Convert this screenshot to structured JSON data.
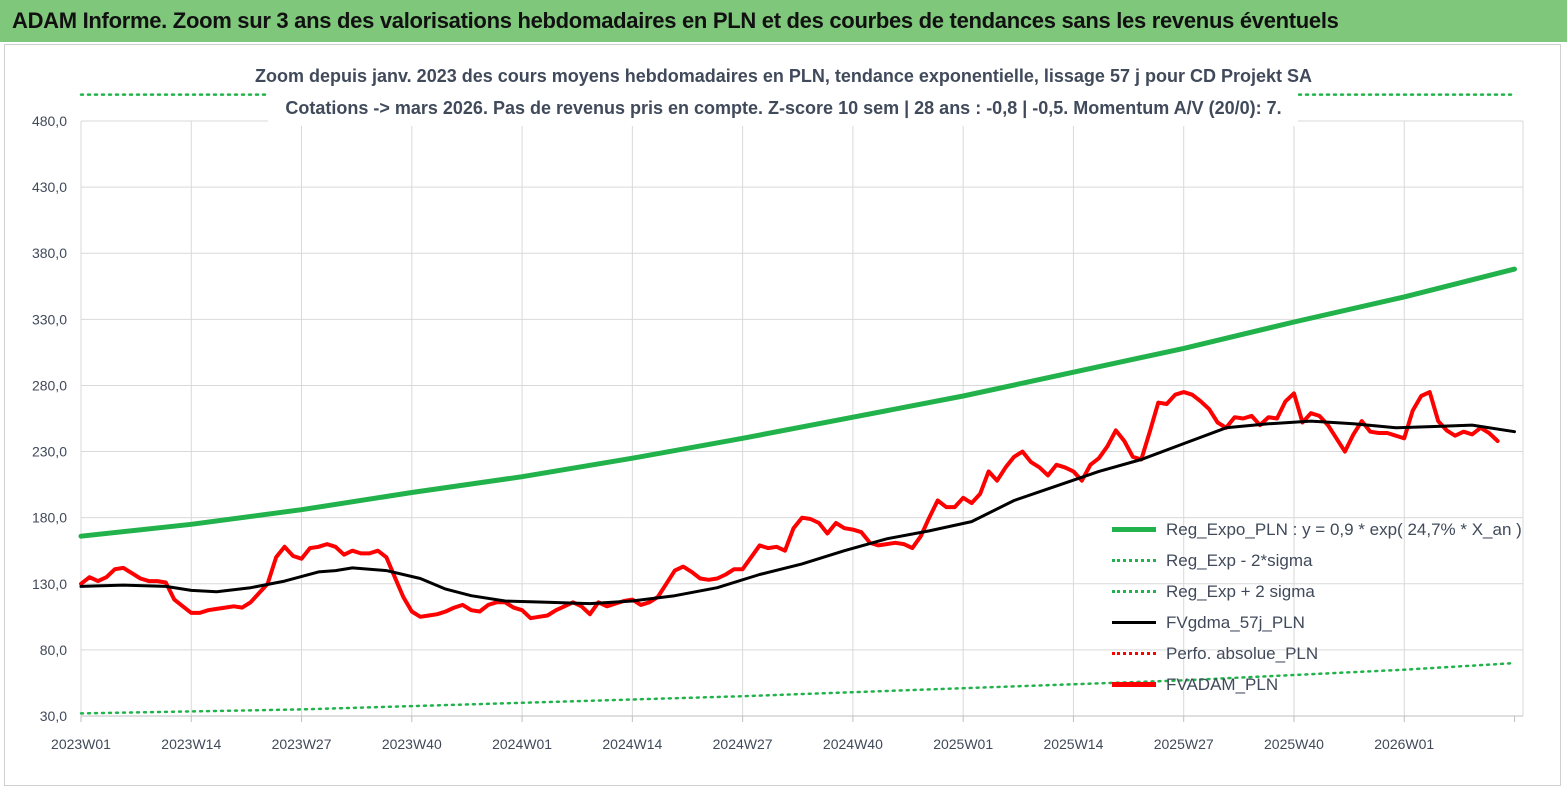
{
  "header": {
    "title": "ADAM Informe. Zoom sur 3 ans des valorisations hebdomadaires en PLN et des courbes de tendances sans les revenus éventuels"
  },
  "chart_data": {
    "type": "line",
    "title_line1": "Zoom depuis janv. 2023 des cours moyens hebdomadaires en PLN, tendance exponentielle, lissage 57 j pour CD Projekt SA",
    "title_line2": "Cotations -> mars 2026. Pas de revenus pris en  compte. Z-score 10 sem  | 28 ans : -0,8 | -0,5. Momentum A/V (20/0): 7.",
    "ylim": [
      30,
      480
    ],
    "ytick_labels": [
      "30,0",
      "80,0",
      "130,0",
      "180,0",
      "230,0",
      "280,0",
      "330,0",
      "380,0",
      "430,0",
      "480,0"
    ],
    "ytick_values": [
      30,
      80,
      130,
      180,
      230,
      280,
      330,
      380,
      430,
      480
    ],
    "xtick_labels": [
      "2023W01",
      "2023W14",
      "2023W27",
      "2023W40",
      "2024W01",
      "2024W14",
      "2024W27",
      "2024W40",
      "2025W01",
      "2025W14",
      "2025W27",
      "2025W40",
      "2026W01"
    ],
    "x_weeks_total": 170,
    "grid": true,
    "legend_position": "bottom-right",
    "series": [
      {
        "name": "Reg_Expo_PLN : y = 0,9 * exp( 24,7% *  X_an )",
        "color": "#21b24b",
        "style": "solid",
        "width": 5,
        "points": [
          [
            0,
            166
          ],
          [
            13,
            175
          ],
          [
            26,
            186
          ],
          [
            39,
            199
          ],
          [
            52,
            211
          ],
          [
            65,
            225
          ],
          [
            78,
            240
          ],
          [
            91,
            256
          ],
          [
            104,
            272
          ],
          [
            117,
            290
          ],
          [
            130,
            308
          ],
          [
            143,
            328
          ],
          [
            156,
            347
          ],
          [
            169,
            368
          ]
        ]
      },
      {
        "name": "Reg_Exp - 2*sigma",
        "color": "#21b24b",
        "style": "dotted",
        "width": 2.5,
        "points": [
          [
            0,
            32
          ],
          [
            26,
            35
          ],
          [
            52,
            40
          ],
          [
            78,
            45
          ],
          [
            104,
            51
          ],
          [
            130,
            57
          ],
          [
            156,
            65
          ],
          [
            169,
            70
          ]
        ]
      },
      {
        "name": "Reg_Exp + 2 sigma",
        "color": "#21b24b",
        "style": "dotted",
        "width": 2.5,
        "points": [
          [
            0,
            500
          ],
          [
            169,
            500
          ]
        ]
      },
      {
        "name": "FVgdma_57j_PLN",
        "color": "#000000",
        "style": "solid",
        "width": 3,
        "points": [
          [
            0,
            128
          ],
          [
            5,
            129
          ],
          [
            10,
            128
          ],
          [
            13,
            125
          ],
          [
            16,
            124
          ],
          [
            20,
            127
          ],
          [
            24,
            132
          ],
          [
            28,
            139
          ],
          [
            30,
            140
          ],
          [
            32,
            142
          ],
          [
            36,
            140
          ],
          [
            40,
            134
          ],
          [
            43,
            126
          ],
          [
            46,
            121
          ],
          [
            50,
            117
          ],
          [
            55,
            116
          ],
          [
            60,
            115
          ],
          [
            65,
            117
          ],
          [
            70,
            121
          ],
          [
            75,
            127
          ],
          [
            80,
            137
          ],
          [
            85,
            145
          ],
          [
            90,
            155
          ],
          [
            95,
            164
          ],
          [
            100,
            170
          ],
          [
            105,
            177
          ],
          [
            110,
            193
          ],
          [
            115,
            204
          ],
          [
            120,
            215
          ],
          [
            125,
            224
          ],
          [
            130,
            236
          ],
          [
            135,
            248
          ],
          [
            140,
            251
          ],
          [
            145,
            253
          ],
          [
            150,
            251
          ],
          [
            155,
            248
          ],
          [
            160,
            249
          ],
          [
            164,
            250
          ],
          [
            169,
            245
          ]
        ]
      },
      {
        "name": "Perfo. absolue_PLN",
        "color": "#ff0000",
        "style": "dotted",
        "width": 2.5,
        "points": []
      },
      {
        "name": "FVADAM_PLN",
        "color": "#ff0000",
        "style": "solid",
        "width": 4,
        "points": [
          [
            0,
            130
          ],
          [
            1,
            135
          ],
          [
            2,
            132
          ],
          [
            3,
            135
          ],
          [
            4,
            141
          ],
          [
            5,
            142
          ],
          [
            6,
            138
          ],
          [
            7,
            134
          ],
          [
            8,
            132
          ],
          [
            9,
            132
          ],
          [
            10,
            131
          ],
          [
            11,
            118
          ],
          [
            12,
            113
          ],
          [
            13,
            108
          ],
          [
            14,
            108
          ],
          [
            15,
            110
          ],
          [
            16,
            111
          ],
          [
            17,
            112
          ],
          [
            18,
            113
          ],
          [
            19,
            112
          ],
          [
            20,
            116
          ],
          [
            21,
            123
          ],
          [
            22,
            130
          ],
          [
            23,
            150
          ],
          [
            24,
            158
          ],
          [
            25,
            151
          ],
          [
            26,
            149
          ],
          [
            27,
            157
          ],
          [
            28,
            158
          ],
          [
            29,
            160
          ],
          [
            30,
            158
          ],
          [
            31,
            152
          ],
          [
            32,
            155
          ],
          [
            33,
            153
          ],
          [
            34,
            153
          ],
          [
            35,
            155
          ],
          [
            36,
            150
          ],
          [
            37,
            135
          ],
          [
            38,
            120
          ],
          [
            39,
            109
          ],
          [
            40,
            105
          ],
          [
            41,
            106
          ],
          [
            42,
            107
          ],
          [
            43,
            109
          ],
          [
            44,
            112
          ],
          [
            45,
            114
          ],
          [
            46,
            110
          ],
          [
            47,
            109
          ],
          [
            48,
            114
          ],
          [
            49,
            116
          ],
          [
            50,
            116
          ],
          [
            51,
            112
          ],
          [
            52,
            110
          ],
          [
            53,
            104
          ],
          [
            54,
            105
          ],
          [
            55,
            106
          ],
          [
            56,
            110
          ],
          [
            57,
            113
          ],
          [
            58,
            116
          ],
          [
            59,
            113
          ],
          [
            60,
            107
          ],
          [
            61,
            116
          ],
          [
            62,
            113
          ],
          [
            63,
            115
          ],
          [
            64,
            117
          ],
          [
            65,
            118
          ],
          [
            66,
            114
          ],
          [
            67,
            116
          ],
          [
            68,
            120
          ],
          [
            69,
            130
          ],
          [
            70,
            140
          ],
          [
            71,
            143
          ],
          [
            72,
            139
          ],
          [
            73,
            134
          ],
          [
            74,
            133
          ],
          [
            75,
            134
          ],
          [
            76,
            137
          ],
          [
            77,
            141
          ],
          [
            78,
            141
          ],
          [
            79,
            150
          ],
          [
            80,
            159
          ],
          [
            81,
            157
          ],
          [
            82,
            158
          ],
          [
            83,
            155
          ],
          [
            84,
            172
          ],
          [
            85,
            180
          ],
          [
            86,
            179
          ],
          [
            87,
            176
          ],
          [
            88,
            168
          ],
          [
            89,
            176
          ],
          [
            90,
            172
          ],
          [
            91,
            171
          ],
          [
            92,
            169
          ],
          [
            93,
            161
          ],
          [
            94,
            159
          ],
          [
            95,
            160
          ],
          [
            96,
            161
          ],
          [
            97,
            160
          ],
          [
            98,
            157
          ],
          [
            99,
            166
          ],
          [
            100,
            180
          ],
          [
            101,
            193
          ],
          [
            102,
            188
          ],
          [
            103,
            188
          ],
          [
            104,
            195
          ],
          [
            105,
            191
          ],
          [
            106,
            198
          ],
          [
            107,
            215
          ],
          [
            108,
            208
          ],
          [
            109,
            218
          ],
          [
            110,
            226
          ],
          [
            111,
            230
          ],
          [
            112,
            222
          ],
          [
            113,
            218
          ],
          [
            114,
            212
          ],
          [
            115,
            220
          ],
          [
            116,
            218
          ],
          [
            117,
            215
          ],
          [
            118,
            208
          ],
          [
            119,
            220
          ],
          [
            120,
            225
          ],
          [
            121,
            234
          ],
          [
            122,
            246
          ],
          [
            123,
            238
          ],
          [
            124,
            226
          ],
          [
            125,
            224
          ],
          [
            126,
            245
          ],
          [
            127,
            267
          ],
          [
            128,
            266
          ],
          [
            129,
            273
          ],
          [
            130,
            275
          ],
          [
            131,
            273
          ],
          [
            132,
            268
          ],
          [
            133,
            262
          ],
          [
            134,
            252
          ],
          [
            135,
            248
          ],
          [
            136,
            256
          ],
          [
            137,
            255
          ],
          [
            138,
            257
          ],
          [
            139,
            250
          ],
          [
            140,
            256
          ],
          [
            141,
            255
          ],
          [
            142,
            268
          ],
          [
            143,
            274
          ],
          [
            144,
            252
          ],
          [
            145,
            259
          ],
          [
            146,
            257
          ],
          [
            147,
            250
          ],
          [
            148,
            240
          ],
          [
            149,
            230
          ],
          [
            150,
            243
          ],
          [
            151,
            253
          ],
          [
            152,
            245
          ],
          [
            153,
            244
          ],
          [
            154,
            244
          ],
          [
            155,
            242
          ],
          [
            156,
            240
          ],
          [
            157,
            261
          ],
          [
            158,
            272
          ],
          [
            159,
            275
          ],
          [
            160,
            253
          ],
          [
            161,
            246
          ],
          [
            162,
            242
          ],
          [
            163,
            245
          ],
          [
            164,
            243
          ],
          [
            165,
            248
          ],
          [
            166,
            244
          ],
          [
            167,
            238
          ]
        ]
      }
    ]
  }
}
